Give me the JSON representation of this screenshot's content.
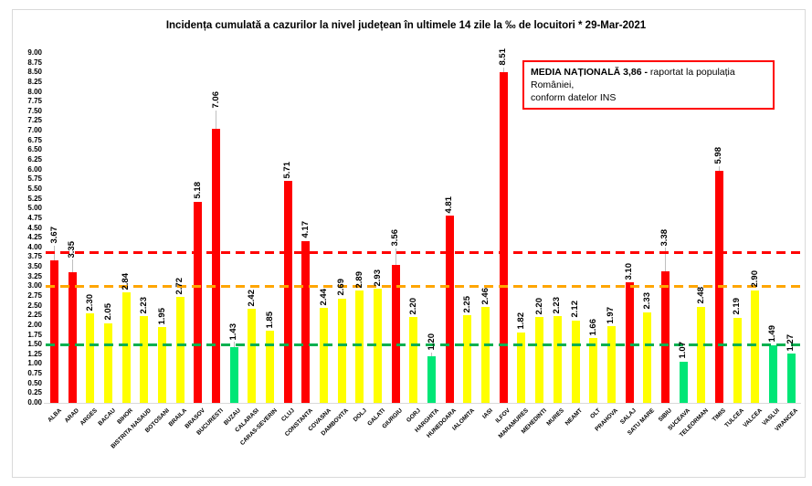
{
  "title": "Incidența cumulată a cazurilor la nivel județean în ultimele 14 zile la ‰ de locuitori * 29-Mar-2021",
  "legend": {
    "bold": "MEDIA NAȚIONALĂ  3,86 -",
    "rest": "raportat la populația României,",
    "line2": "conform datelor INS"
  },
  "colors": {
    "red": "#ff0000",
    "yellow": "#ffff00",
    "green": "#00e676",
    "red_line": "#ff0000",
    "orange_line": "#ffa500",
    "green_line": "#00b050",
    "axis": "#d9d9d9",
    "leader": "#bfbfbf"
  },
  "chart_data": {
    "type": "bar",
    "title": "Incidența cumulată a cazurilor la nivel județean în ultimele 14 zile la ‰ de locuitori * 29-Mar-2021",
    "xlabel": "",
    "ylabel": "",
    "ylim": [
      0,
      9
    ],
    "ytick_step": 0.25,
    "grid": false,
    "legend_position": "top-right",
    "categories": [
      "ALBA",
      "ARAD",
      "ARGES",
      "BACAU",
      "BIHOR",
      "BISTRITA NASAUD",
      "BOTOSANI",
      "BRAILA",
      "BRASOV",
      "BUCURESTI",
      "BUZAU",
      "CALARASI",
      "CARAS-SEVERIN",
      "CLUJ",
      "CONSTANTA",
      "COVASNA",
      "DAMBOVITA",
      "DOLJ",
      "GALATI",
      "GIURGIU",
      "GORJ",
      "HARGHITA",
      "HUNEDOARA",
      "IALOMITA",
      "IASI",
      "ILFOV",
      "MARAMURES",
      "MEHEDINTI",
      "MURES",
      "NEAMT",
      "OLT",
      "PRAHOVA",
      "SALAJ",
      "SATU MARE",
      "SIBIU",
      "SUCEAVA",
      "TELEORMAN",
      "TIMIS",
      "TULCEA",
      "VALCEA",
      "VASLUI",
      "VRANCEA"
    ],
    "values": [
      3.67,
      3.35,
      2.3,
      2.05,
      2.84,
      2.23,
      1.95,
      2.72,
      5.18,
      7.06,
      1.43,
      2.42,
      1.85,
      5.71,
      4.17,
      2.44,
      2.69,
      2.89,
      2.93,
      3.56,
      2.2,
      1.2,
      4.81,
      2.25,
      2.46,
      8.51,
      1.82,
      2.2,
      2.23,
      2.12,
      1.66,
      1.97,
      3.1,
      2.33,
      3.38,
      1.07,
      2.48,
      5.98,
      2.19,
      2.9,
      1.49,
      1.27
    ],
    "statuses": [
      "red",
      "red",
      "yellow",
      "yellow",
      "yellow",
      "yellow",
      "yellow",
      "yellow",
      "red",
      "red",
      "green",
      "yellow",
      "yellow",
      "red",
      "red",
      "yellow",
      "yellow",
      "yellow",
      "yellow",
      "red",
      "yellow",
      "green",
      "red",
      "yellow",
      "yellow",
      "red",
      "yellow",
      "yellow",
      "yellow",
      "yellow",
      "yellow",
      "yellow",
      "red",
      "yellow",
      "red",
      "green",
      "yellow",
      "red",
      "yellow",
      "yellow",
      "green",
      "green"
    ],
    "leaders": {
      "0": 16,
      "1": 14,
      "9": 20,
      "10": 6,
      "19": 18,
      "21": 4,
      "25": 5,
      "34": 26,
      "37": 5
    },
    "reference_lines": [
      {
        "name": "media-nationala",
        "value": 3.86,
        "color_key": "red_line"
      },
      {
        "name": "prag-3",
        "value": 3.0,
        "color_key": "orange_line"
      },
      {
        "name": "prag-1.5",
        "value": 1.5,
        "color_key": "green_line"
      }
    ]
  }
}
